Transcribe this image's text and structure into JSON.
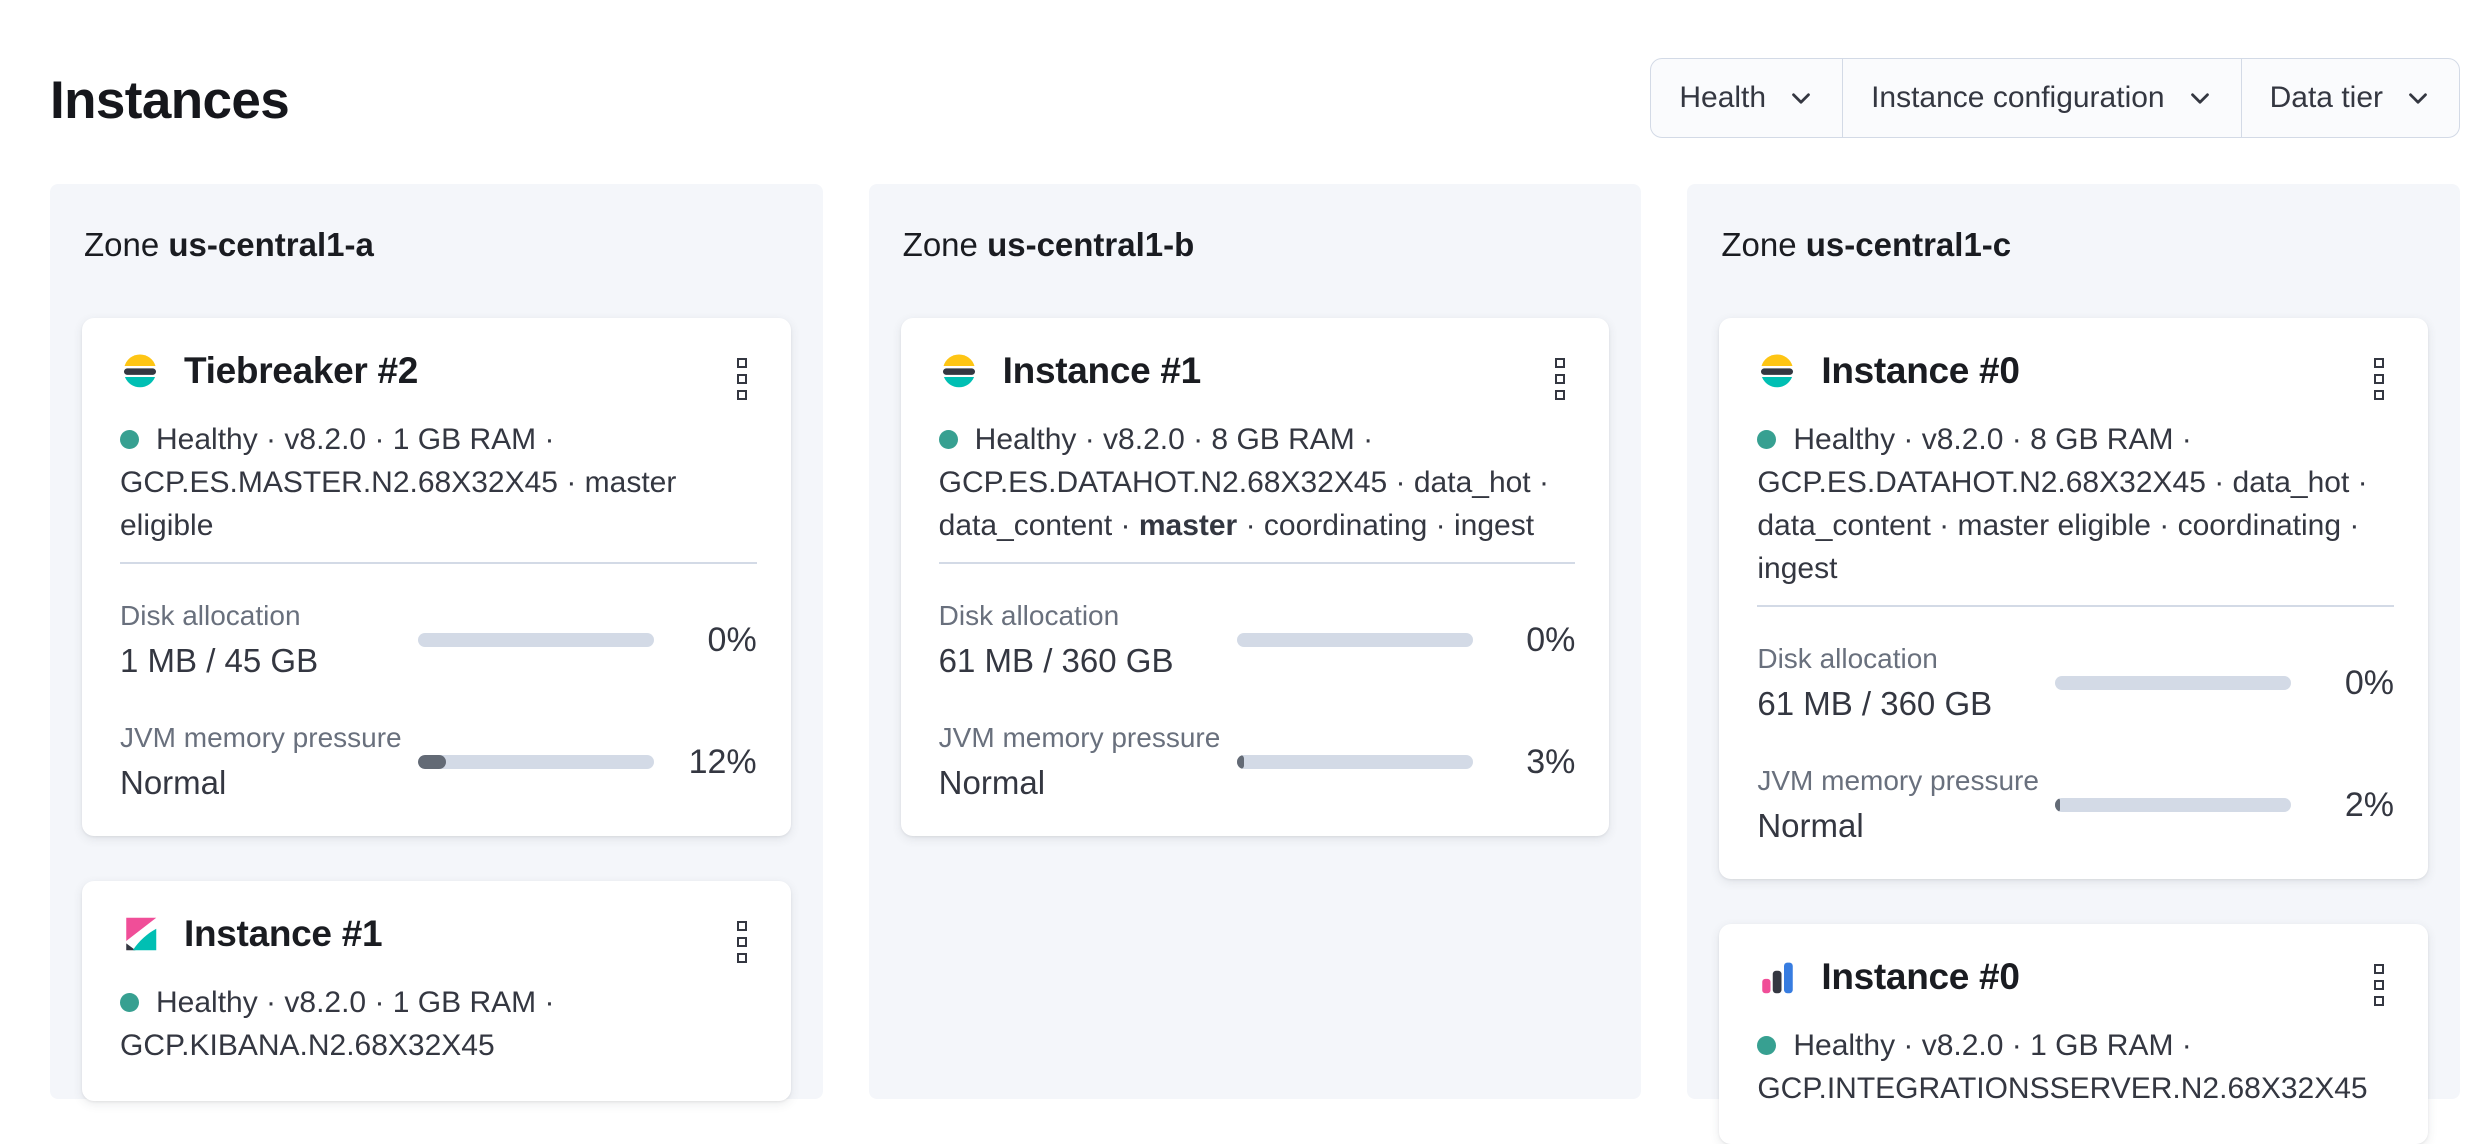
{
  "page_title": "Instances",
  "filters": {
    "health": "Health",
    "instance_configuration": "Instance configuration",
    "data_tier": "Data tier"
  },
  "zones": [
    {
      "label_prefix": "Zone",
      "name": "us-central1-a",
      "cards": [
        {
          "title": "Tiebreaker #2",
          "logo": "elasticsearch",
          "status_line1": "Healthy · v8.2.0 · 1 GB RAM ·",
          "status_line2": "GCP.ES.MASTER.N2.68X32X45 · master eligible",
          "metrics": [
            {
              "label": "Disk allocation",
              "value": "1 MB / 45 GB",
              "percent": "0%",
              "fill": 0
            },
            {
              "label": "JVM memory pressure",
              "value": "Normal",
              "percent": "12%",
              "fill": 12
            }
          ]
        },
        {
          "title": "Instance #1",
          "logo": "kibana",
          "status_line1": "Healthy · v8.2.0 · 1 GB RAM ·",
          "status_line2": "GCP.KIBANA.N2.68X32X45"
        }
      ]
    },
    {
      "label_prefix": "Zone",
      "name": "us-central1-b",
      "cards": [
        {
          "title": "Instance #1",
          "logo": "elasticsearch",
          "status_line1": "Healthy · v8.2.0 · 8 GB RAM ·",
          "status_line2": "GCP.ES.DATAHOT.N2.68X32X45 · data_hot ·",
          "status_line3_pre": "data_content · ",
          "status_line3_bold": "master",
          "status_line3_post": " · coordinating · ingest",
          "metrics": [
            {
              "label": "Disk allocation",
              "value": "61 MB / 360 GB",
              "percent": "0%",
              "fill": 0
            },
            {
              "label": "JVM memory pressure",
              "value": "Normal",
              "percent": "3%",
              "fill": 3
            }
          ]
        }
      ]
    },
    {
      "label_prefix": "Zone",
      "name": "us-central1-c",
      "cards": [
        {
          "title": "Instance #0",
          "logo": "elasticsearch",
          "status_line1": "Healthy · v8.2.0 · 8 GB RAM ·",
          "status_line2": "GCP.ES.DATAHOT.N2.68X32X45 · data_hot ·",
          "status_line3_pre": "data_content · master eligible · coordinating · ingest",
          "status_line3_bold": "",
          "status_line3_post": "",
          "metrics": [
            {
              "label": "Disk allocation",
              "value": "61 MB / 360 GB",
              "percent": "0%",
              "fill": 0
            },
            {
              "label": "JVM memory pressure",
              "value": "Normal",
              "percent": "2%",
              "fill": 2
            }
          ]
        },
        {
          "title": "Instance #0",
          "logo": "integrations-server",
          "status_line1": "Healthy · v8.2.0 · 1 GB RAM ·",
          "status_line2": "GCP.INTEGRATIONSSERVER.N2.68X32X45"
        }
      ]
    }
  ],
  "colors": {
    "health_dot": "#37A091",
    "progress_track": "#D3DAE6",
    "progress_fill": "#636A75",
    "panel_background": "#F4F6FA",
    "es_logo_yellow": "#FEC514",
    "logo_dark": "#343741",
    "logo_teal": "#00BFB3",
    "kibana_pink": "#F04E98",
    "integrations_blue": "#377CE0"
  },
  "icons": {
    "actions_menu": "boxes-vertical-icon",
    "filter_arrow": "chevron-down-icon"
  }
}
